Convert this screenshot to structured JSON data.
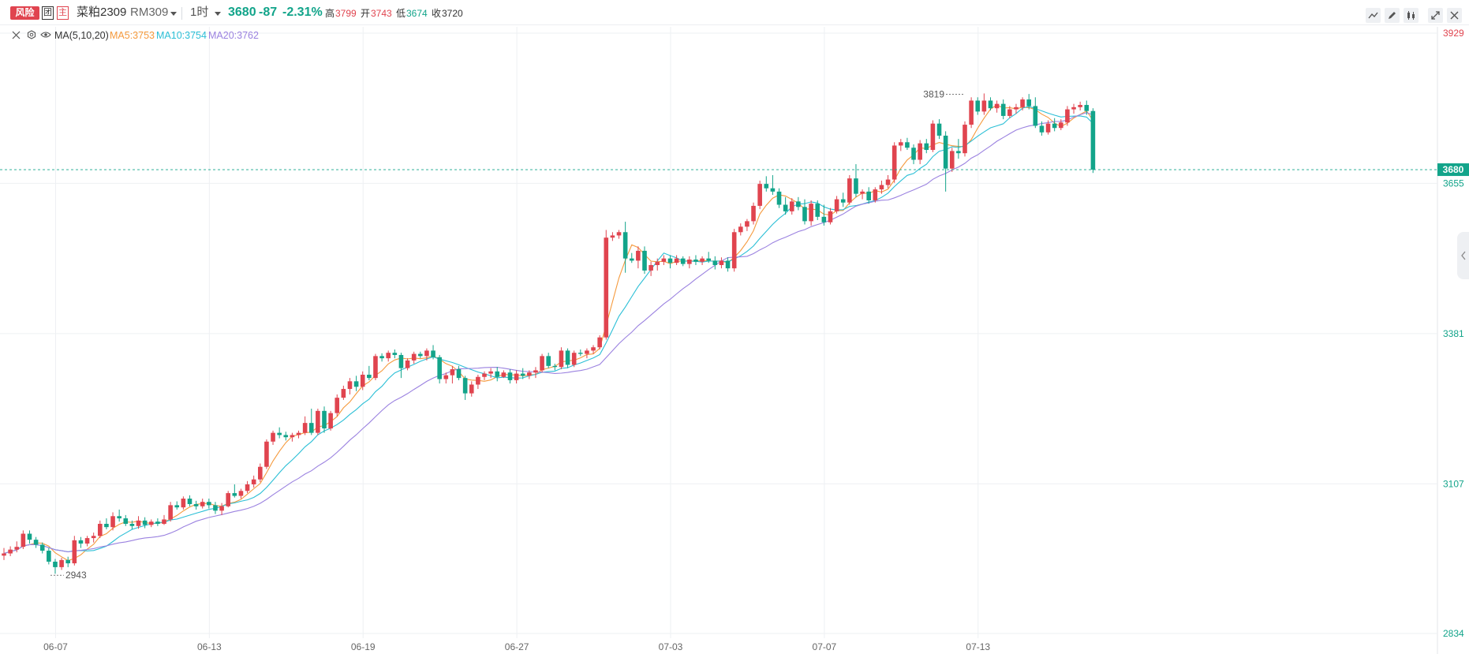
{
  "header": {
    "risk_badge": "风险",
    "group_badge": "团",
    "main_badge": "主",
    "instrument_name": "菜粕2309",
    "instrument_code": "RM309",
    "interval": "1时",
    "last_price": "3680",
    "change": "-87",
    "change_pct": "-2.31%",
    "high_label": "高",
    "high_value": "3799",
    "open_label": "开",
    "open_value": "3743",
    "low_label": "低",
    "low_value": "3674",
    "close_label": "收",
    "close_value": "3720"
  },
  "indicator": {
    "name": "MA(5,10,20)",
    "ma5": "MA5:3753",
    "ma10": "MA10:3754",
    "ma20": "MA20:3762"
  },
  "colors": {
    "up": "#e0444f",
    "down": "#12a48a",
    "ma5": "#f59a3d",
    "ma10": "#2bbfd6",
    "ma20": "#9b82e0",
    "grid": "#eef0f3"
  },
  "toolbar_icons": [
    "line-tool-icon",
    "pen-icon",
    "candle-toggle-icon",
    "fullscreen-icon",
    "close-icon"
  ],
  "chart_data": {
    "type": "candlestick",
    "y_ticks": [
      "3929",
      "3655",
      "3381",
      "3107",
      "2834"
    ],
    "ylim": [
      2834,
      3929
    ],
    "x_ticks": [
      "06-07",
      "06-13",
      "06-19",
      "06-27",
      "07-03",
      "07-07",
      "07-13"
    ],
    "x_tick_bars": [
      4,
      28,
      52,
      76,
      100,
      124,
      148
    ],
    "current_price_label": "3680",
    "annotations": [
      {
        "text": "3819",
        "bar": 150,
        "price": 3819
      },
      {
        "text": "2943",
        "bar": 8,
        "price": 2943
      }
    ],
    "ohlc": [
      [
        2976,
        2990,
        2968,
        2980
      ],
      [
        2980,
        2993,
        2975,
        2987
      ],
      [
        2987,
        3002,
        2982,
        2992
      ],
      [
        2992,
        3022,
        2988,
        3016
      ],
      [
        3016,
        3022,
        2998,
        3005
      ],
      [
        3005,
        3010,
        2990,
        2996
      ],
      [
        2996,
        3000,
        2980,
        2985
      ],
      [
        2985,
        2990,
        2960,
        2965
      ],
      [
        2965,
        2970,
        2943,
        2955
      ],
      [
        2955,
        2972,
        2950,
        2968
      ],
      [
        2968,
        2974,
        2955,
        2962
      ],
      [
        2962,
        3012,
        2958,
        3004
      ],
      [
        3004,
        3010,
        2990,
        2998
      ],
      [
        2998,
        3012,
        2993,
        3008
      ],
      [
        3008,
        3018,
        3000,
        3012
      ],
      [
        3012,
        3040,
        3008,
        3034
      ],
      [
        3034,
        3044,
        3024,
        3028
      ],
      [
        3028,
        3055,
        3022,
        3048
      ],
      [
        3048,
        3060,
        3038,
        3044
      ],
      [
        3044,
        3050,
        3030,
        3034
      ],
      [
        3034,
        3040,
        3024,
        3030
      ],
      [
        3030,
        3048,
        3025,
        3040
      ],
      [
        3040,
        3046,
        3026,
        3032
      ],
      [
        3032,
        3042,
        3028,
        3038
      ],
      [
        3038,
        3044,
        3030,
        3034
      ],
      [
        3034,
        3050,
        3032,
        3042
      ],
      [
        3042,
        3074,
        3038,
        3068
      ],
      [
        3068,
        3075,
        3060,
        3064
      ],
      [
        3064,
        3084,
        3060,
        3080
      ],
      [
        3080,
        3086,
        3066,
        3070
      ],
      [
        3070,
        3076,
        3060,
        3066
      ],
      [
        3066,
        3080,
        3062,
        3074
      ],
      [
        3074,
        3080,
        3062,
        3068
      ],
      [
        3068,
        3074,
        3052,
        3058
      ],
      [
        3058,
        3072,
        3050,
        3066
      ],
      [
        3066,
        3094,
        3064,
        3090
      ],
      [
        3090,
        3106,
        3082,
        3085
      ],
      [
        3085,
        3098,
        3080,
        3094
      ],
      [
        3094,
        3112,
        3090,
        3106
      ],
      [
        3106,
        3122,
        3100,
        3115
      ],
      [
        3115,
        3144,
        3110,
        3138
      ],
      [
        3138,
        3188,
        3134,
        3184
      ],
      [
        3184,
        3204,
        3178,
        3200
      ],
      [
        3200,
        3210,
        3190,
        3196
      ],
      [
        3196,
        3202,
        3186,
        3192
      ],
      [
        3192,
        3200,
        3184,
        3196
      ],
      [
        3196,
        3204,
        3190,
        3200
      ],
      [
        3200,
        3230,
        3196,
        3218
      ],
      [
        3218,
        3244,
        3196,
        3200
      ],
      [
        3200,
        3244,
        3196,
        3240
      ],
      [
        3240,
        3248,
        3200,
        3208
      ],
      [
        3208,
        3240,
        3204,
        3236
      ],
      [
        3236,
        3270,
        3230,
        3264
      ],
      [
        3264,
        3286,
        3260,
        3280
      ],
      [
        3280,
        3300,
        3270,
        3294
      ],
      [
        3294,
        3304,
        3276,
        3284
      ],
      [
        3284,
        3312,
        3278,
        3306
      ],
      [
        3306,
        3322,
        3296,
        3300
      ],
      [
        3300,
        3344,
        3296,
        3340
      ],
      [
        3340,
        3345,
        3330,
        3336
      ],
      [
        3336,
        3350,
        3330,
        3346
      ],
      [
        3346,
        3352,
        3336,
        3342
      ],
      [
        3342,
        3346,
        3300,
        3318
      ],
      [
        3318,
        3336,
        3314,
        3332
      ],
      [
        3332,
        3348,
        3326,
        3344
      ],
      [
        3344,
        3348,
        3336,
        3340
      ],
      [
        3340,
        3354,
        3332,
        3350
      ],
      [
        3350,
        3360,
        3334,
        3338
      ],
      [
        3338,
        3342,
        3290,
        3298
      ],
      [
        3298,
        3310,
        3290,
        3305
      ],
      [
        3305,
        3322,
        3290,
        3316
      ],
      [
        3316,
        3322,
        3296,
        3300
      ],
      [
        3300,
        3304,
        3260,
        3272
      ],
      [
        3272,
        3294,
        3266,
        3288
      ],
      [
        3288,
        3306,
        3280,
        3302
      ],
      [
        3302,
        3312,
        3296,
        3308
      ],
      [
        3308,
        3318,
        3300,
        3312
      ],
      [
        3312,
        3320,
        3294,
        3302
      ],
      [
        3302,
        3314,
        3300,
        3310
      ],
      [
        3310,
        3316,
        3290,
        3296
      ],
      [
        3296,
        3314,
        3290,
        3308
      ],
      [
        3308,
        3318,
        3298,
        3304
      ],
      [
        3304,
        3314,
        3298,
        3310
      ],
      [
        3310,
        3320,
        3300,
        3314
      ],
      [
        3314,
        3344,
        3310,
        3340
      ],
      [
        3340,
        3346,
        3318,
        3322
      ],
      [
        3322,
        3326,
        3314,
        3320
      ],
      [
        3320,
        3356,
        3316,
        3350
      ],
      [
        3350,
        3354,
        3318,
        3324
      ],
      [
        3324,
        3350,
        3320,
        3346
      ],
      [
        3346,
        3352,
        3340,
        3344
      ],
      [
        3344,
        3354,
        3336,
        3350
      ],
      [
        3350,
        3360,
        3344,
        3356
      ],
      [
        3356,
        3378,
        3352,
        3374
      ],
      [
        3374,
        3570,
        3370,
        3556
      ],
      [
        3556,
        3566,
        3550,
        3560
      ],
      [
        3560,
        3570,
        3554,
        3566
      ],
      [
        3566,
        3585,
        3492,
        3518
      ],
      [
        3518,
        3528,
        3510,
        3514
      ],
      [
        3514,
        3540,
        3500,
        3532
      ],
      [
        3532,
        3540,
        3490,
        3496
      ],
      [
        3496,
        3512,
        3486,
        3506
      ],
      [
        3506,
        3518,
        3496,
        3512
      ],
      [
        3512,
        3524,
        3506,
        3518
      ],
      [
        3518,
        3524,
        3500,
        3510
      ],
      [
        3510,
        3524,
        3506,
        3518
      ],
      [
        3518,
        3522,
        3504,
        3508
      ],
      [
        3508,
        3522,
        3500,
        3516
      ],
      [
        3516,
        3524,
        3506,
        3512
      ],
      [
        3512,
        3522,
        3506,
        3518
      ],
      [
        3518,
        3530,
        3510,
        3514
      ],
      [
        3514,
        3522,
        3498,
        3506
      ],
      [
        3506,
        3520,
        3500,
        3514
      ],
      [
        3514,
        3520,
        3494,
        3500
      ],
      [
        3500,
        3572,
        3494,
        3566
      ],
      [
        3566,
        3582,
        3560,
        3576
      ],
      [
        3576,
        3590,
        3568,
        3586
      ],
      [
        3586,
        3620,
        3580,
        3614
      ],
      [
        3614,
        3660,
        3608,
        3654
      ],
      [
        3654,
        3668,
        3640,
        3646
      ],
      [
        3646,
        3670,
        3634,
        3640
      ],
      [
        3640,
        3646,
        3610,
        3616
      ],
      [
        3616,
        3630,
        3598,
        3604
      ],
      [
        3604,
        3628,
        3598,
        3622
      ],
      [
        3622,
        3630,
        3606,
        3612
      ],
      [
        3612,
        3626,
        3580,
        3586
      ],
      [
        3586,
        3624,
        3578,
        3618
      ],
      [
        3618,
        3624,
        3588,
        3594
      ],
      [
        3594,
        3616,
        3578,
        3584
      ],
      [
        3584,
        3610,
        3580,
        3604
      ],
      [
        3604,
        3632,
        3600,
        3626
      ],
      [
        3626,
        3638,
        3612,
        3620
      ],
      [
        3620,
        3670,
        3616,
        3664
      ],
      [
        3664,
        3690,
        3630,
        3636
      ],
      [
        3636,
        3644,
        3626,
        3640
      ],
      [
        3640,
        3648,
        3618,
        3624
      ],
      [
        3624,
        3648,
        3620,
        3644
      ],
      [
        3644,
        3660,
        3636,
        3652
      ],
      [
        3652,
        3670,
        3646,
        3662
      ],
      [
        3662,
        3730,
        3656,
        3724
      ],
      [
        3724,
        3736,
        3714,
        3730
      ],
      [
        3730,
        3738,
        3716,
        3720
      ],
      [
        3720,
        3726,
        3690,
        3698
      ],
      [
        3698,
        3734,
        3690,
        3728
      ],
      [
        3728,
        3736,
        3710,
        3716
      ],
      [
        3716,
        3770,
        3712,
        3764
      ],
      [
        3764,
        3772,
        3736,
        3742
      ],
      [
        3742,
        3750,
        3640,
        3682
      ],
      [
        3682,
        3720,
        3676,
        3714
      ],
      [
        3714,
        3736,
        3700,
        3710
      ],
      [
        3710,
        3768,
        3704,
        3762
      ],
      [
        3762,
        3812,
        3756,
        3806
      ],
      [
        3806,
        3812,
        3780,
        3786
      ],
      [
        3786,
        3819,
        3780,
        3806
      ],
      [
        3806,
        3812,
        3788,
        3792
      ],
      [
        3792,
        3806,
        3784,
        3800
      ],
      [
        3800,
        3808,
        3772,
        3778
      ],
      [
        3778,
        3796,
        3774,
        3790
      ],
      [
        3790,
        3800,
        3782,
        3794
      ],
      [
        3794,
        3812,
        3788,
        3808
      ],
      [
        3808,
        3818,
        3790,
        3796
      ],
      [
        3796,
        3812,
        3756,
        3760
      ],
      [
        3760,
        3768,
        3742,
        3748
      ],
      [
        3748,
        3770,
        3744,
        3764
      ],
      [
        3764,
        3774,
        3750,
        3756
      ],
      [
        3756,
        3772,
        3752,
        3766
      ],
      [
        3766,
        3796,
        3760,
        3790
      ],
      [
        3790,
        3800,
        3782,
        3794
      ],
      [
        3794,
        3804,
        3788,
        3798
      ],
      [
        3798,
        3806,
        3780,
        3787
      ],
      [
        3787,
        3792,
        3674,
        3680
      ]
    ],
    "ma_values": [
      "MA5:3753",
      "MA10:3754",
      "MA20:3762"
    ]
  }
}
